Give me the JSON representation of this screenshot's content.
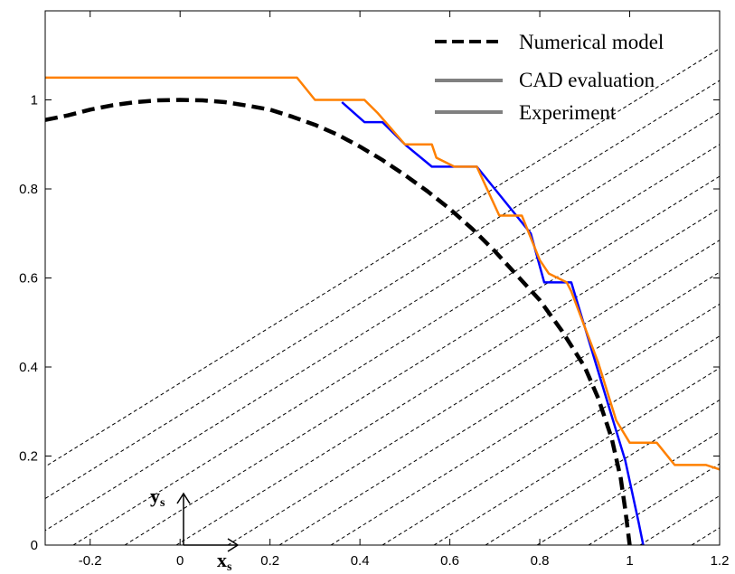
{
  "chart_data": {
    "type": "line",
    "xlim": [
      -0.3,
      1.2
    ],
    "ylim": [
      0,
      1.2
    ],
    "xticks": [
      -0.2,
      0,
      0.2,
      0.4,
      0.6,
      0.8,
      1,
      1.2
    ],
    "yticks": [
      0,
      0.2,
      0.4,
      0.6,
      0.8,
      1
    ],
    "xtick_labels": [
      "-0.2",
      "0",
      "0.2",
      "0.4",
      "0.6",
      "0.8",
      "1",
      "1.2"
    ],
    "ytick_labels": [
      "0",
      "0.2",
      "0.4",
      "0.6",
      "0.8",
      "1"
    ],
    "grid": false,
    "legend_position": "top-right",
    "colors": {
      "numerical": "#000000",
      "cad": "#0000ff",
      "experiment": "#ff8000",
      "legend_gray": "#808080"
    },
    "series": [
      {
        "name": "Numerical model",
        "style": "dashed",
        "x": [
          -0.3,
          -0.25,
          -0.2,
          -0.15,
          -0.1,
          -0.05,
          0,
          0.05,
          0.1,
          0.15,
          0.2,
          0.25,
          0.3,
          0.35,
          0.4,
          0.45,
          0.5,
          0.55,
          0.6,
          0.65,
          0.7,
          0.75,
          0.8,
          0.85,
          0.9,
          0.93,
          0.96,
          0.98,
          0.99,
          1.0
        ],
        "y": [
          0.955,
          0.965,
          0.978,
          0.988,
          0.995,
          0.999,
          1.0,
          0.999,
          0.995,
          0.987,
          0.978,
          0.962,
          0.944,
          0.922,
          0.895,
          0.865,
          0.831,
          0.795,
          0.755,
          0.71,
          0.66,
          0.605,
          0.55,
          0.48,
          0.4,
          0.33,
          0.24,
          0.15,
          0.08,
          0.0
        ]
      },
      {
        "name": "CAD evaluation",
        "style": "solid",
        "x": [
          0.36,
          0.41,
          0.45,
          0.5,
          0.56,
          0.66,
          0.7,
          0.74,
          0.78,
          0.81,
          0.87,
          0.9,
          0.93,
          0.96,
          0.99,
          1.02,
          1.03
        ],
        "y": [
          0.995,
          0.95,
          0.95,
          0.9,
          0.85,
          0.85,
          0.8,
          0.75,
          0.7,
          0.59,
          0.59,
          0.49,
          0.39,
          0.29,
          0.19,
          0.05,
          0.0
        ]
      },
      {
        "name": "Experiment",
        "style": "solid",
        "x": [
          -0.3,
          0.26,
          0.3,
          0.36,
          0.41,
          0.44,
          0.5,
          0.56,
          0.57,
          0.61,
          0.66,
          0.71,
          0.76,
          0.8,
          0.82,
          0.86,
          0.87,
          0.93,
          0.97,
          1.0,
          1.06,
          1.1,
          1.17,
          1.2
        ],
        "y": [
          1.05,
          1.05,
          1.0,
          1.0,
          1.0,
          0.97,
          0.9,
          0.9,
          0.87,
          0.85,
          0.85,
          0.74,
          0.74,
          0.64,
          0.61,
          0.59,
          0.57,
          0.41,
          0.28,
          0.23,
          0.23,
          0.18,
          0.18,
          0.17
        ]
      }
    ],
    "axes_annotation": {
      "y_symbol": "y",
      "y_sub": "s",
      "x_symbol": "x",
      "x_sub": "s"
    }
  }
}
